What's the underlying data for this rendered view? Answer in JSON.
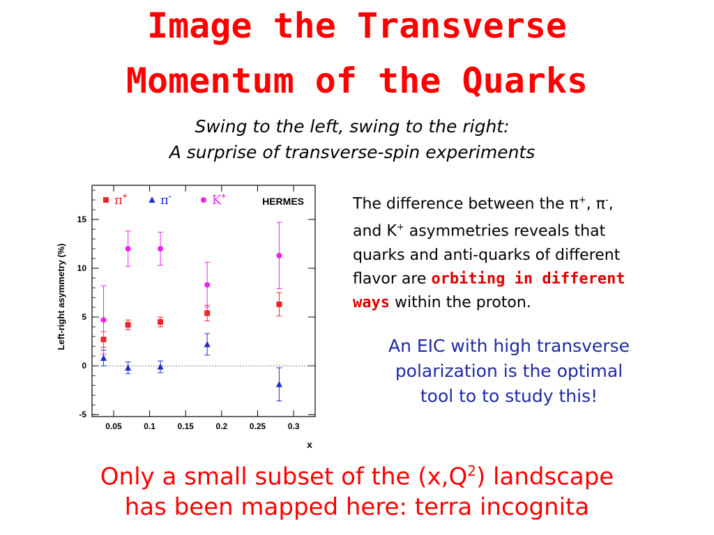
{
  "slide": {
    "title_line1": "Image the Transverse",
    "title_line2": "Momentum of the Quarks",
    "subtitle_line1": "Swing to the left, swing to the right:",
    "subtitle_line2": "A surprise of transverse-spin experiments",
    "desc": {
      "p1": "The difference between the ",
      "pi": "π",
      "plus": "+",
      "minus": "-",
      "comma": ", ",
      "p2": ",",
      "p3": "and K",
      "p4": " asymmetries reveals that",
      "p5": "quarks and anti-quarks of different",
      "p6": "flavor are ",
      "highlight1": "orbiting in different",
      "highlight2": "ways",
      "p7": " within the proton."
    },
    "eic_line1": "An EIC with high transverse",
    "eic_line2": "polarization is the optimal",
    "eic_line3": "tool to to study this!",
    "bottom_line1_a": "Only a small subset of the (x,Q",
    "bottom_line1_sup": "2",
    "bottom_line1_b": ") landscape",
    "bottom_line2": "has been mapped here: terra incognita",
    "colors": {
      "title": "#ff0000",
      "eic": "#1f2aa0",
      "highlight": "#e00000"
    }
  },
  "chart_data": {
    "type": "scatter",
    "experiment_label": "HERMES",
    "xlabel": "x",
    "ylabel": "Left-right asymmetry (%)",
    "xlim": [
      0.02,
      0.33
    ],
    "ylim": [
      -5.2,
      18.5
    ],
    "x_ticks": [
      0.05,
      0.1,
      0.15,
      0.2,
      0.25,
      0.3
    ],
    "x_tick_labels": [
      "0.05",
      "0.1",
      "0.15",
      "0.2",
      "0.25",
      "0.3"
    ],
    "y_ticks": [
      -5,
      0,
      5,
      10,
      15
    ],
    "y_tick_labels": [
      "-5",
      "0",
      "5",
      "10",
      "15"
    ],
    "zero_line": true,
    "series": [
      {
        "name": "π+",
        "base": "π",
        "charge": "+",
        "marker": "square",
        "color": "#e8262a",
        "x": [
          0.036,
          0.07,
          0.115,
          0.18,
          0.28
        ],
        "y": [
          2.7,
          4.2,
          4.5,
          5.4,
          6.3
        ],
        "err": [
          0.8,
          0.5,
          0.5,
          0.8,
          1.2
        ]
      },
      {
        "name": "π-",
        "base": "π",
        "charge": "-",
        "marker": "triangle",
        "color": "#1f2dcc",
        "x": [
          0.036,
          0.07,
          0.115,
          0.18,
          0.28
        ],
        "y": [
          0.8,
          -0.2,
          -0.1,
          2.2,
          -1.9
        ],
        "err": [
          0.8,
          0.6,
          0.6,
          1.1,
          1.7
        ]
      },
      {
        "name": "K+",
        "base": "K",
        "charge": "+",
        "marker": "circle",
        "color": "#ee22ee",
        "x": [
          0.036,
          0.07,
          0.115,
          0.18,
          0.28
        ],
        "y": [
          4.7,
          12.0,
          12.0,
          8.3,
          11.3
        ],
        "err": [
          3.5,
          1.8,
          1.7,
          2.3,
          3.4
        ]
      }
    ]
  }
}
